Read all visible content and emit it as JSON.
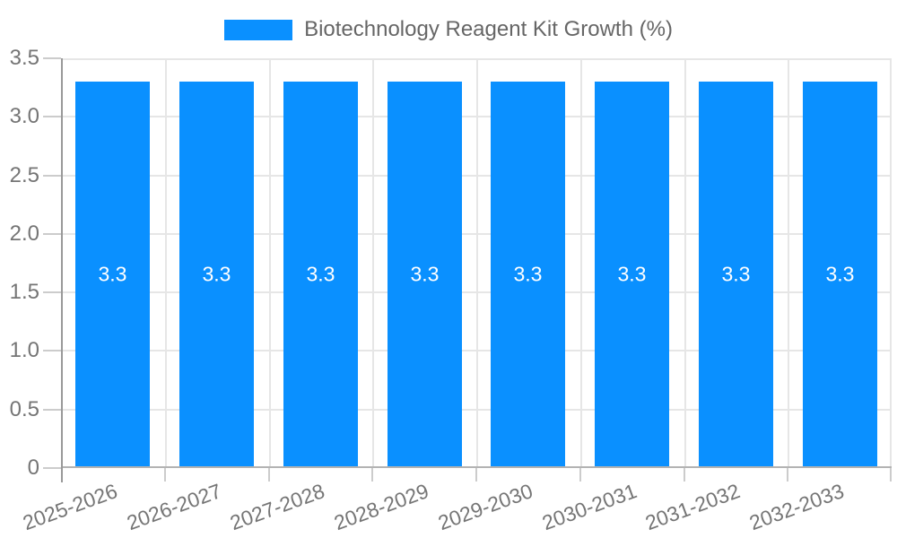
{
  "chart_data": {
    "type": "bar",
    "title": "Biotechnology Reagent Kit Growth (%)",
    "legend": {
      "position": "top",
      "entries": [
        {
          "label": "Biotechnology Reagent Kit Growth (%)",
          "color": "#0a90ff"
        }
      ]
    },
    "categories": [
      "2025-2026",
      "2026-2027",
      "2027-2028",
      "2028-2029",
      "2029-2030",
      "2030-2031",
      "2031-2032",
      "2032-2033"
    ],
    "series": [
      {
        "name": "Biotechnology Reagent Kit Growth (%)",
        "values": [
          3.3,
          3.3,
          3.3,
          3.3,
          3.3,
          3.3,
          3.3,
          3.3
        ]
      }
    ],
    "bar_value_labels": [
      "3.3",
      "3.3",
      "3.3",
      "3.3",
      "3.3",
      "3.3",
      "3.3",
      "3.3"
    ],
    "xlabel": "",
    "ylabel": "",
    "ylim": [
      0,
      3.5
    ],
    "yticks": [
      0,
      0.5,
      1,
      1.5,
      2,
      2.5,
      3,
      3.5
    ],
    "ytick_labels": [
      "0",
      "0.5",
      "1.0",
      "1.5",
      "2.0",
      "2.5",
      "3.0",
      "3.5"
    ],
    "grid": true,
    "x_tick_rotation_deg": -20,
    "colors": {
      "bar": "#0a90ff",
      "grid_line": "#e6e6e6",
      "y_axis_line": "#999999",
      "x_axis_line": "#b3b3b3",
      "tick_mark": "#cccccc",
      "axis_label_text": "#757575",
      "legend_text": "#666666",
      "value_label_text": "#ffffff"
    }
  }
}
